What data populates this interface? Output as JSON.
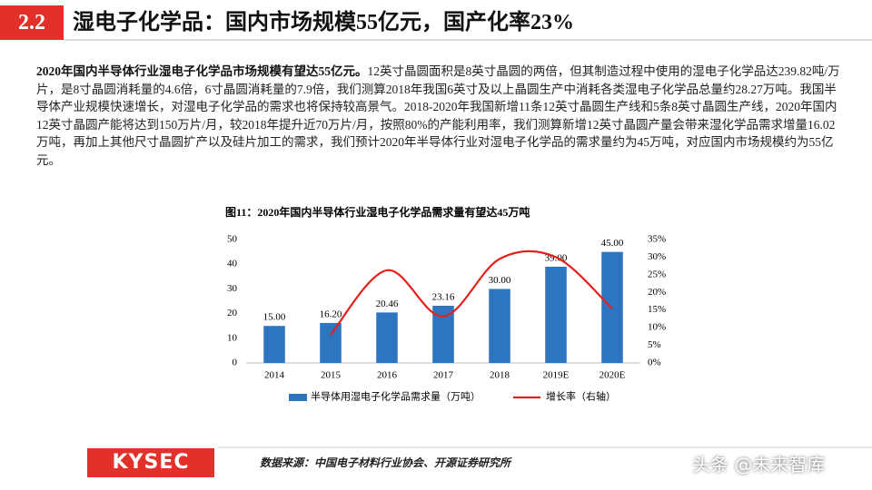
{
  "header": {
    "section": "2.2",
    "title": "湿电子化学品：国内市场规模55亿元，国产化率23%"
  },
  "body": {
    "bold": "2020年国内半导体行业湿电子化学品市场规模有望达55亿元。",
    "text": "12英寸晶圆面积是8英寸晶圆的两倍，但其制造过程中使用的湿电子化学品达239.82吨/万片，是8寸晶圆消耗量的4.6倍，6寸晶圆消耗量的7.9倍，我们测算2018年我国6英寸及以上晶圆生产中消耗各类湿电子化学品总量约28.27万吨。我国半导体产业规模快速增长，对湿电子化学品的需求也将保持较高景气。2018-2020年我国新增11条12英寸晶圆生产线和5条8英寸晶圆生产线，2020年国内12英寸晶圆产能将达到150万片/月，较2018年提升近70万片/月，按照80%的产能利用率，我们测算新增12英寸晶圆产量会带来湿化学品需求增量16.02万吨，再加上其他尺寸晶圆扩产以及硅片加工的需求，我们预计2020年半导体行业对湿电子化学品的需求量约为45万吨，对应国内市场规模约为55亿元。"
  },
  "chart_data": {
    "type": "bar-line",
    "title": "图11：2020年国内半导体行业湿电子化学品需求量有望达45万吨",
    "categories": [
      "2014",
      "2015",
      "2016",
      "2017",
      "2018",
      "2019E",
      "2020E"
    ],
    "series": [
      {
        "name": "半导体用湿电子化学品需求量（万吨）",
        "type": "bar",
        "color": "#2e75c0",
        "values": [
          15,
          16.2,
          20.46,
          23.16,
          30,
          39,
          45
        ],
        "value_labels": [
          "15.00",
          "16.20",
          "20.46",
          "23.16",
          "30.00",
          "39.00",
          "45.00"
        ]
      },
      {
        "name": "增长率（右轴）",
        "type": "line",
        "axis": "y2",
        "color": "#e3201b",
        "values": [
          null,
          8,
          26.3,
          13.2,
          29.5,
          30,
          15.4
        ]
      }
    ],
    "ylim": [
      0,
      50
    ],
    "yticks": [
      0,
      10,
      20,
      30,
      40,
      50
    ],
    "y2lim": [
      0,
      35
    ],
    "y2ticks": [
      {
        "value": 0,
        "label": "0%"
      },
      {
        "value": 5,
        "label": "5%"
      },
      {
        "value": 10,
        "label": "10%"
      },
      {
        "value": 15,
        "label": "15%"
      },
      {
        "value": 20,
        "label": "20%"
      },
      {
        "value": 25,
        "label": "25%"
      },
      {
        "value": 30,
        "label": "30%"
      },
      {
        "value": 35,
        "label": "35%"
      }
    ]
  },
  "footer": {
    "logo": "KYSEC",
    "source": "数据来源：中国电子材料行业协会、开源证券研究所",
    "watermark": "头条 @未来智库"
  }
}
